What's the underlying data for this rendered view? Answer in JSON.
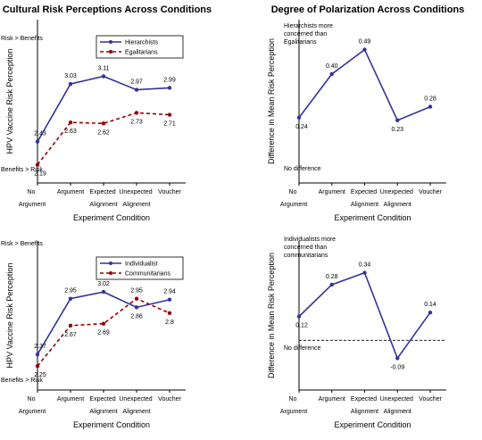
{
  "chart_data": [
    {
      "type": "line",
      "title": "Cultural Risk Perceptions Across Conditions",
      "categories": [
        "No Argument",
        "Argument",
        "Expected Alignment",
        "Unexpected Alignment",
        "Voucher"
      ],
      "xlabel": "Experiment Condition",
      "ylabel": "HPV Vaccine Risk Perception",
      "ylim": [
        2.0,
        3.7
      ],
      "legend": "upper right",
      "annotations": [
        "Risk > Benefits",
        "Benefits > Risk"
      ],
      "series": [
        {
          "name": "Hierarchists",
          "color": "#333399",
          "dashed": false,
          "values": [
            2.43,
            3.03,
            3.11,
            2.97,
            2.99
          ],
          "value_labels": [
            "2.43",
            "3.03",
            "3.11",
            "2.97",
            "2.99"
          ]
        },
        {
          "name": "Egalitarians",
          "color": "#990000",
          "dashed": true,
          "values": [
            2.19,
            2.63,
            2.62,
            2.73,
            2.71
          ],
          "value_labels": [
            "2.19",
            "2.63",
            "2.62",
            "2.73",
            "2.71"
          ]
        }
      ]
    },
    {
      "type": "line",
      "title": "Degree of Polarization Across Conditions",
      "categories": [
        "No Argument",
        "Argument",
        "Expected Alignment",
        "Unexpected Alignment",
        "Voucher"
      ],
      "xlabel": "Experiment Condition",
      "ylabel": "Difference in Mean Risk Perception",
      "ylim": [
        0,
        0.6
      ],
      "annotations": [
        "Hierarchists more concerned than Egalitarians",
        "No difference"
      ],
      "series": [
        {
          "color": "#333399",
          "dashed": false,
          "values": [
            0.24,
            0.4,
            0.49,
            0.23,
            0.28
          ],
          "value_labels": [
            "0.24",
            "0.40",
            "0.49",
            "0.23",
            "0.28"
          ]
        }
      ]
    },
    {
      "type": "line",
      "categories": [
        "No Argument",
        "Argument",
        "Expected Alignment",
        "Unexpected Alignment",
        "Voucher"
      ],
      "xlabel": "Experiment Condition",
      "ylabel": "HPV Vaccine Risk Perception",
      "ylim": [
        2.0,
        3.55
      ],
      "legend": "upper right",
      "annotations": [
        "Risk > Benefits",
        "Benefits > Risk"
      ],
      "series": [
        {
          "name": "Individualist",
          "color": "#333399",
          "dashed": false,
          "values": [
            2.37,
            2.95,
            3.02,
            2.86,
            2.94
          ],
          "value_labels": [
            "2.37",
            "2.95",
            "3.02",
            "2.86",
            "2.94"
          ]
        },
        {
          "name": "Communitarians",
          "color": "#990000",
          "dashed": true,
          "values": [
            2.25,
            2.67,
            2.69,
            2.95,
            2.8
          ],
          "value_labels": [
            "2.25",
            "2.67",
            "2.69",
            "2.95",
            "2.8"
          ]
        }
      ]
    },
    {
      "type": "line",
      "categories": [
        "No Argument",
        "Argument",
        "Expected Alignment",
        "Unexpected Alignment",
        "Voucher"
      ],
      "xlabel": "Experiment Condition",
      "ylabel": "Difference in Mean Risk Perception",
      "ylim": [
        -0.25,
        0.5
      ],
      "zero_line": true,
      "annotations": [
        "Individualists more concerned than communitarians",
        "No difference"
      ],
      "series": [
        {
          "color": "#333399",
          "dashed": false,
          "values": [
            0.12,
            0.28,
            0.34,
            -0.09,
            0.14
          ],
          "value_labels": [
            "0.12",
            "0.28",
            "0.34",
            "-0.09",
            "0.14"
          ]
        }
      ]
    }
  ]
}
